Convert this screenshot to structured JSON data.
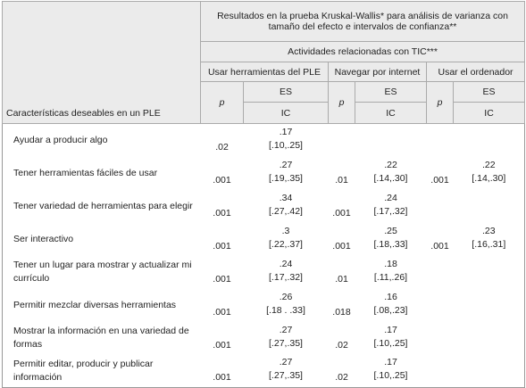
{
  "table": {
    "title": "Resultados en la prueba Kruskal-Wallis* para análisis de varianza con tamaño del efecto e intervalos de confianza**",
    "subheader": "Actividades relacionadas con TIC***",
    "row_header": "Características deseables en un PLE",
    "groups": [
      {
        "name": "Usar herramientas del PLE",
        "p": "p",
        "es": "ES",
        "ic": "IC"
      },
      {
        "name": "Navegar por internet",
        "p": "p",
        "es": "ES",
        "ic": "IC"
      },
      {
        "name": "Usar el ordenador",
        "p": "p",
        "es": "ES",
        "ic": "IC"
      }
    ],
    "rows": [
      {
        "label": "Ayudar a producir algo",
        "cells": [
          [
            ".02",
            ".17",
            "[.10,.25]"
          ],
          null,
          null
        ]
      },
      {
        "label": "Tener herramientas fáciles de usar",
        "cells": [
          [
            ".001",
            ".27",
            "[.19,.35]"
          ],
          [
            ".01",
            ".22",
            "[.14,.30]"
          ],
          [
            ".001",
            ".22",
            "[.14,.30]"
          ]
        ]
      },
      {
        "label": "Tener variedad de herramientas para elegir",
        "cells": [
          [
            ".001",
            ".34",
            "[.27,.42]"
          ],
          [
            ".001",
            ".24",
            "[.17,.32]"
          ],
          null
        ]
      },
      {
        "label": "Ser interactivo",
        "cells": [
          [
            ".001",
            ".3",
            "[.22,.37]"
          ],
          [
            ".001",
            ".25",
            "[.18,.33]"
          ],
          [
            ".001",
            ".23",
            "[.16,.31]"
          ]
        ]
      },
      {
        "label": "Tener un lugar para mostrar y actualizar mi currículo",
        "cells": [
          [
            ".001",
            ".24",
            "[.17,.32]"
          ],
          [
            ".01",
            ".18",
            "[.11,.26]"
          ],
          null
        ]
      },
      {
        "label": "Permitir mezclar diversas herramientas",
        "cells": [
          [
            ".001",
            ".26",
            "[.18 . .33]"
          ],
          [
            ".018",
            ".16",
            "[.08,.23]"
          ],
          null
        ]
      },
      {
        "label": "Mostrar la información en una variedad de formas",
        "cells": [
          [
            ".001",
            ".27",
            "[.27,.35]"
          ],
          [
            ".02",
            ".17",
            "[.10,.25]"
          ],
          null
        ]
      },
      {
        "label": "Permitir editar, producir y publicar información",
        "cells": [
          [
            ".001",
            ".27",
            "[.27,.35]"
          ],
          [
            ".02",
            ".17",
            "[.10,.25]"
          ],
          null
        ]
      }
    ]
  }
}
